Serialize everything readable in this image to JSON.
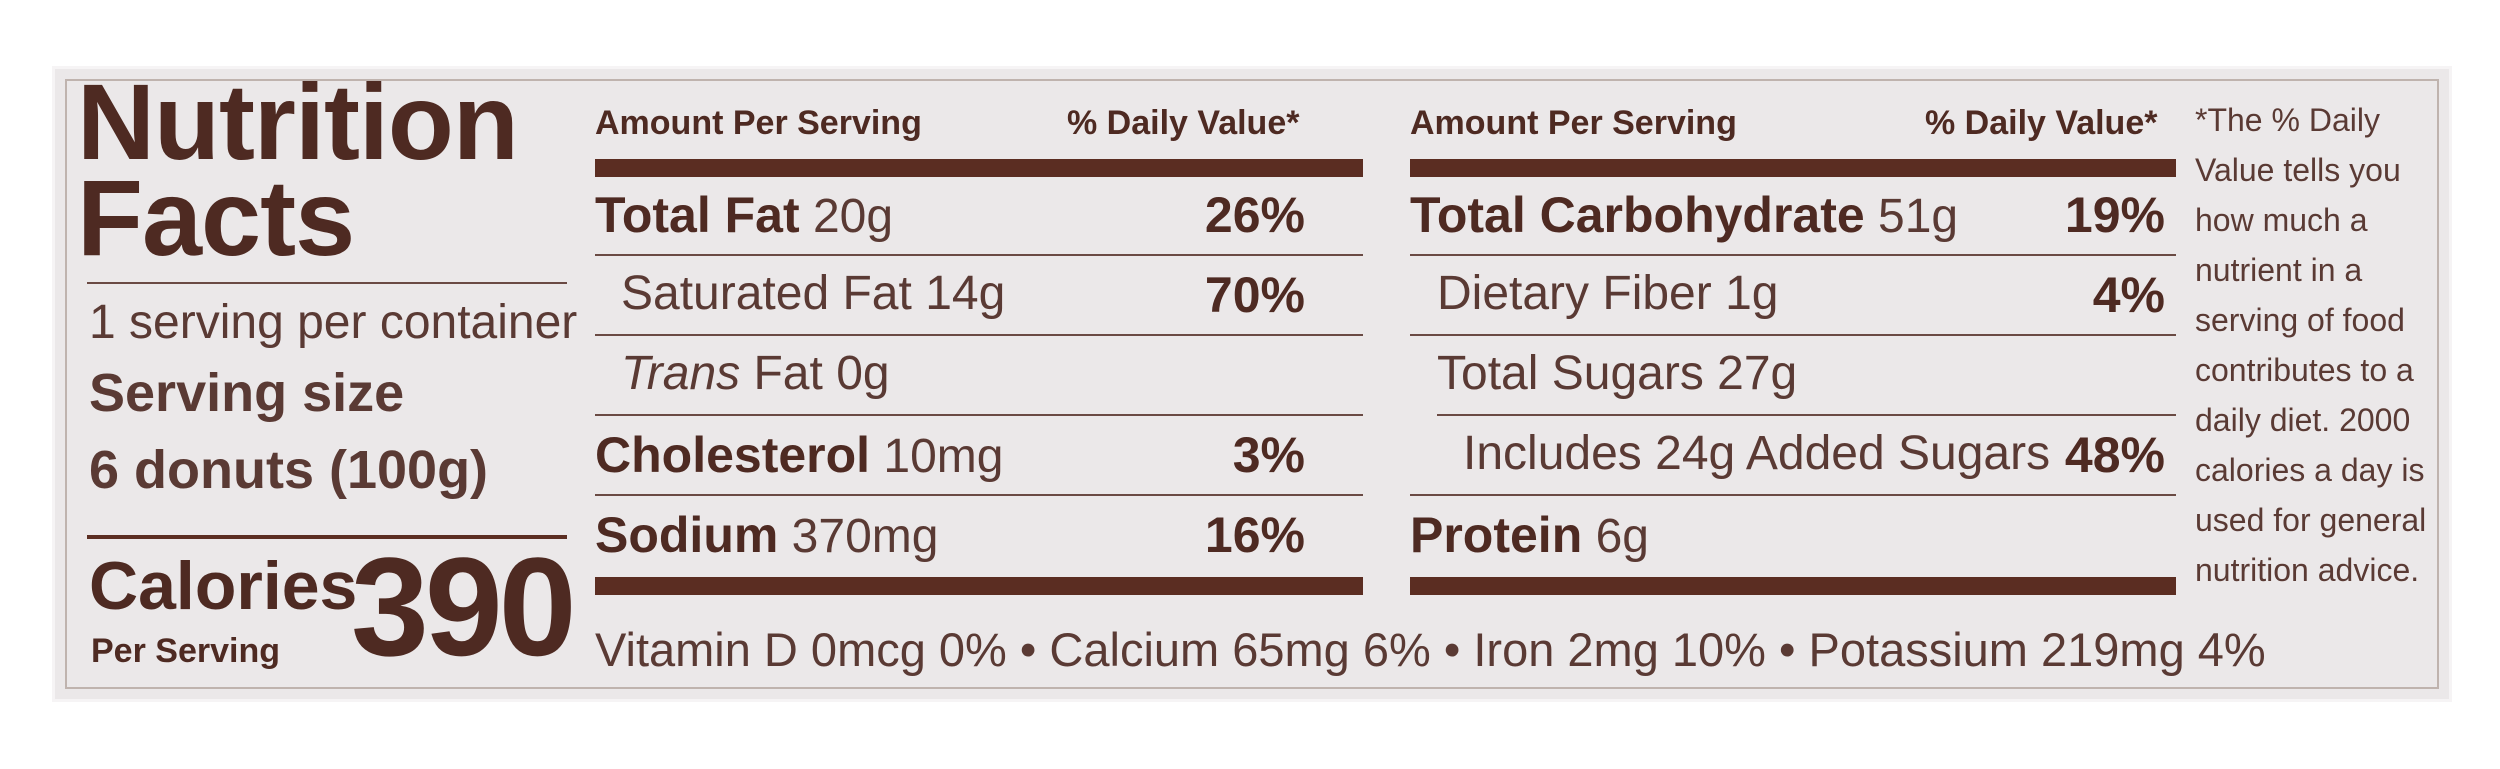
{
  "left": {
    "title_line1": "Nutrition",
    "title_line2": "Facts",
    "servings": "1 serving per container",
    "serving_size_label": "Serving size",
    "serving_size_value": "6 donuts (100g)",
    "calories_label": "Calories",
    "per_serving": "Per Serving",
    "calories_value": "390"
  },
  "col1": {
    "header_left": "Amount Per Serving",
    "header_right": "% Daily Value*",
    "rows": [
      {
        "name": "Total Fat",
        "amount": "20g",
        "dv": "26%"
      },
      {
        "name": "Saturated Fat",
        "amount": "14g",
        "dv": "70%"
      },
      {
        "name_italic": "Trans",
        "name": "Fat",
        "amount": "0g",
        "dv": ""
      },
      {
        "name": "Cholesterol",
        "amount": "10mg",
        "dv": "3%"
      },
      {
        "name": "Sodium",
        "amount": "370mg",
        "dv": "16%"
      }
    ]
  },
  "col2": {
    "header_left": "Amount Per Serving",
    "header_right": "% Daily Value*",
    "rows": [
      {
        "name": "Total Carbohydrate",
        "amount": "51g",
        "dv": "19%"
      },
      {
        "name": "Dietary Fiber",
        "amount": "1g",
        "dv": "4%"
      },
      {
        "name": "Total Sugars",
        "amount": "27g",
        "dv": ""
      },
      {
        "name": "Includes 24g Added Sugars",
        "amount": "",
        "dv": "48%"
      },
      {
        "name": "Protein",
        "amount": "6g",
        "dv": ""
      }
    ]
  },
  "vitamins": "Vitamin D 0mcg 0% • Calcium 65mg 6% • Iron 2mg 10% • Potassium 219mg 4%",
  "footnote": "*The % Daily Value tells you how much a nutrient in a serving of food contributes to a daily diet. 2000 calories a day is used  for general nutrition advice.",
  "colors": {
    "brown": "#4e2a22",
    "background": "#ebe8e9"
  }
}
